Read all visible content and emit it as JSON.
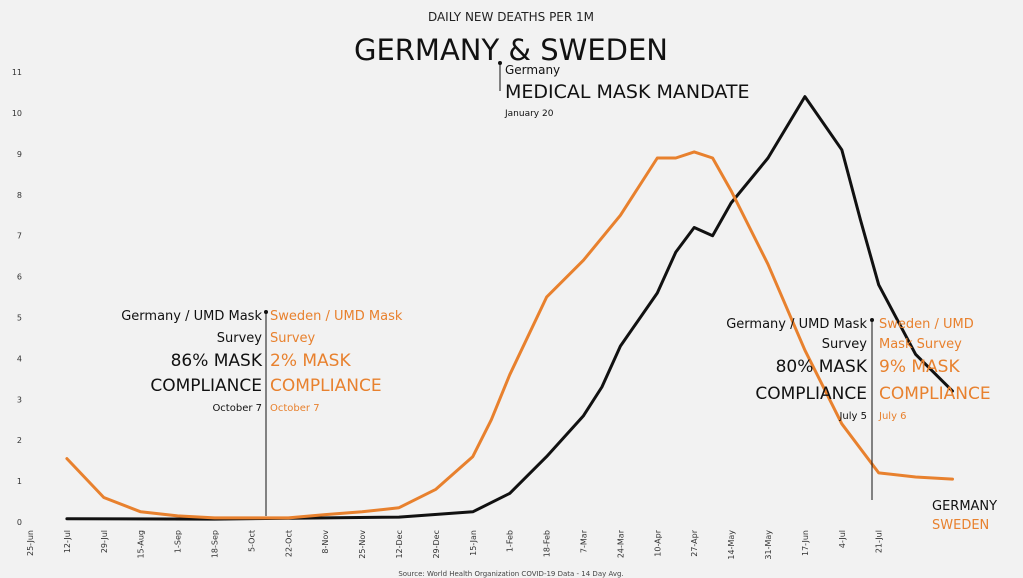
{
  "chart_data": {
    "type": "line",
    "subtitle": "DAILY NEW DEATHS PER 1M",
    "title": "GERMANY & SWEDEN",
    "source": "Source: World Health Organization COVID-19 Data - 14 Day Avg.",
    "ylim": [
      0,
      11
    ],
    "y_ticks": [
      "0",
      "1",
      "2",
      "3",
      "4",
      "5",
      "6",
      "7",
      "8",
      "9",
      "10",
      "11"
    ],
    "grid": false,
    "x_ticks": [
      "25-Jun",
      "12-Jul",
      "29-Jul",
      "15-Aug",
      "1-Sep",
      "18-Sep",
      "5-Oct",
      "22-Oct",
      "8-Nov",
      "25-Nov",
      "12-Dec",
      "29-Dec",
      "15-Jan",
      "1-Feb",
      "18-Feb",
      "7-Mar",
      "24-Mar",
      "10-Apr",
      "27-Apr",
      "14-May",
      "31-May",
      "17-Jun",
      "4-Jul",
      "21-Jul"
    ],
    "series": [
      {
        "name": "GERMANY",
        "color": "#111111",
        "x": [
          1,
          5,
          8,
          10,
          12,
          13,
          14,
          15,
          15.5,
          16,
          17,
          17.5,
          18,
          18.5,
          19,
          20,
          21,
          22,
          22.5,
          23,
          24,
          25
        ],
        "y": [
          0.08,
          0.07,
          0.1,
          0.12,
          0.25,
          0.7,
          1.6,
          2.6,
          3.3,
          4.3,
          5.6,
          6.6,
          7.2,
          7.0,
          7.8,
          8.9,
          10.4,
          9.1,
          7.4,
          5.8,
          4.1,
          3.2
        ]
      },
      {
        "name": "SWEDEN",
        "color": "#e8812e",
        "x": [
          1,
          2,
          3,
          4,
          5,
          6,
          7,
          8,
          9,
          10,
          11,
          12,
          12.5,
          13,
          14,
          15,
          16,
          17,
          17.5,
          18,
          18.5,
          19,
          20,
          21,
          22,
          23,
          24,
          25
        ],
        "y": [
          1.55,
          0.6,
          0.25,
          0.15,
          0.1,
          0.1,
          0.1,
          0.18,
          0.25,
          0.35,
          0.8,
          1.6,
          2.5,
          3.6,
          5.5,
          6.4,
          7.5,
          8.9,
          8.9,
          9.05,
          8.9,
          8.1,
          6.3,
          4.2,
          2.4,
          1.2,
          1.1,
          1.05
        ]
      }
    ],
    "legend": [
      "GERMANY",
      "SWEDEN"
    ],
    "annotations": {
      "top": {
        "country": "Germany",
        "event": "MEDICAL MASK MANDATE",
        "date": "January 20"
      },
      "oct": {
        "germany_source": "Germany / UMD Mask",
        "germany_source2": "Survey",
        "germany_value": "86% MASK",
        "germany_word": "COMPLIANCE",
        "germany_date": "October 7",
        "sweden_source": "Sweden / UMD Mask",
        "sweden_source2": "Survey",
        "sweden_value": "2% MASK",
        "sweden_word": "COMPLIANCE",
        "sweden_date": "October 7"
      },
      "jul": {
        "germany_source": "Germany / UMD Mask",
        "germany_source2": "Survey",
        "germany_value": "80% MASK",
        "germany_word": "COMPLIANCE",
        "germany_date": "July 5",
        "sweden_source": "Sweden / UMD",
        "sweden_source2": "Mask Survey",
        "sweden_value": "9% MASK",
        "sweden_word": "COMPLIANCE",
        "sweden_date": "July 6"
      }
    }
  }
}
